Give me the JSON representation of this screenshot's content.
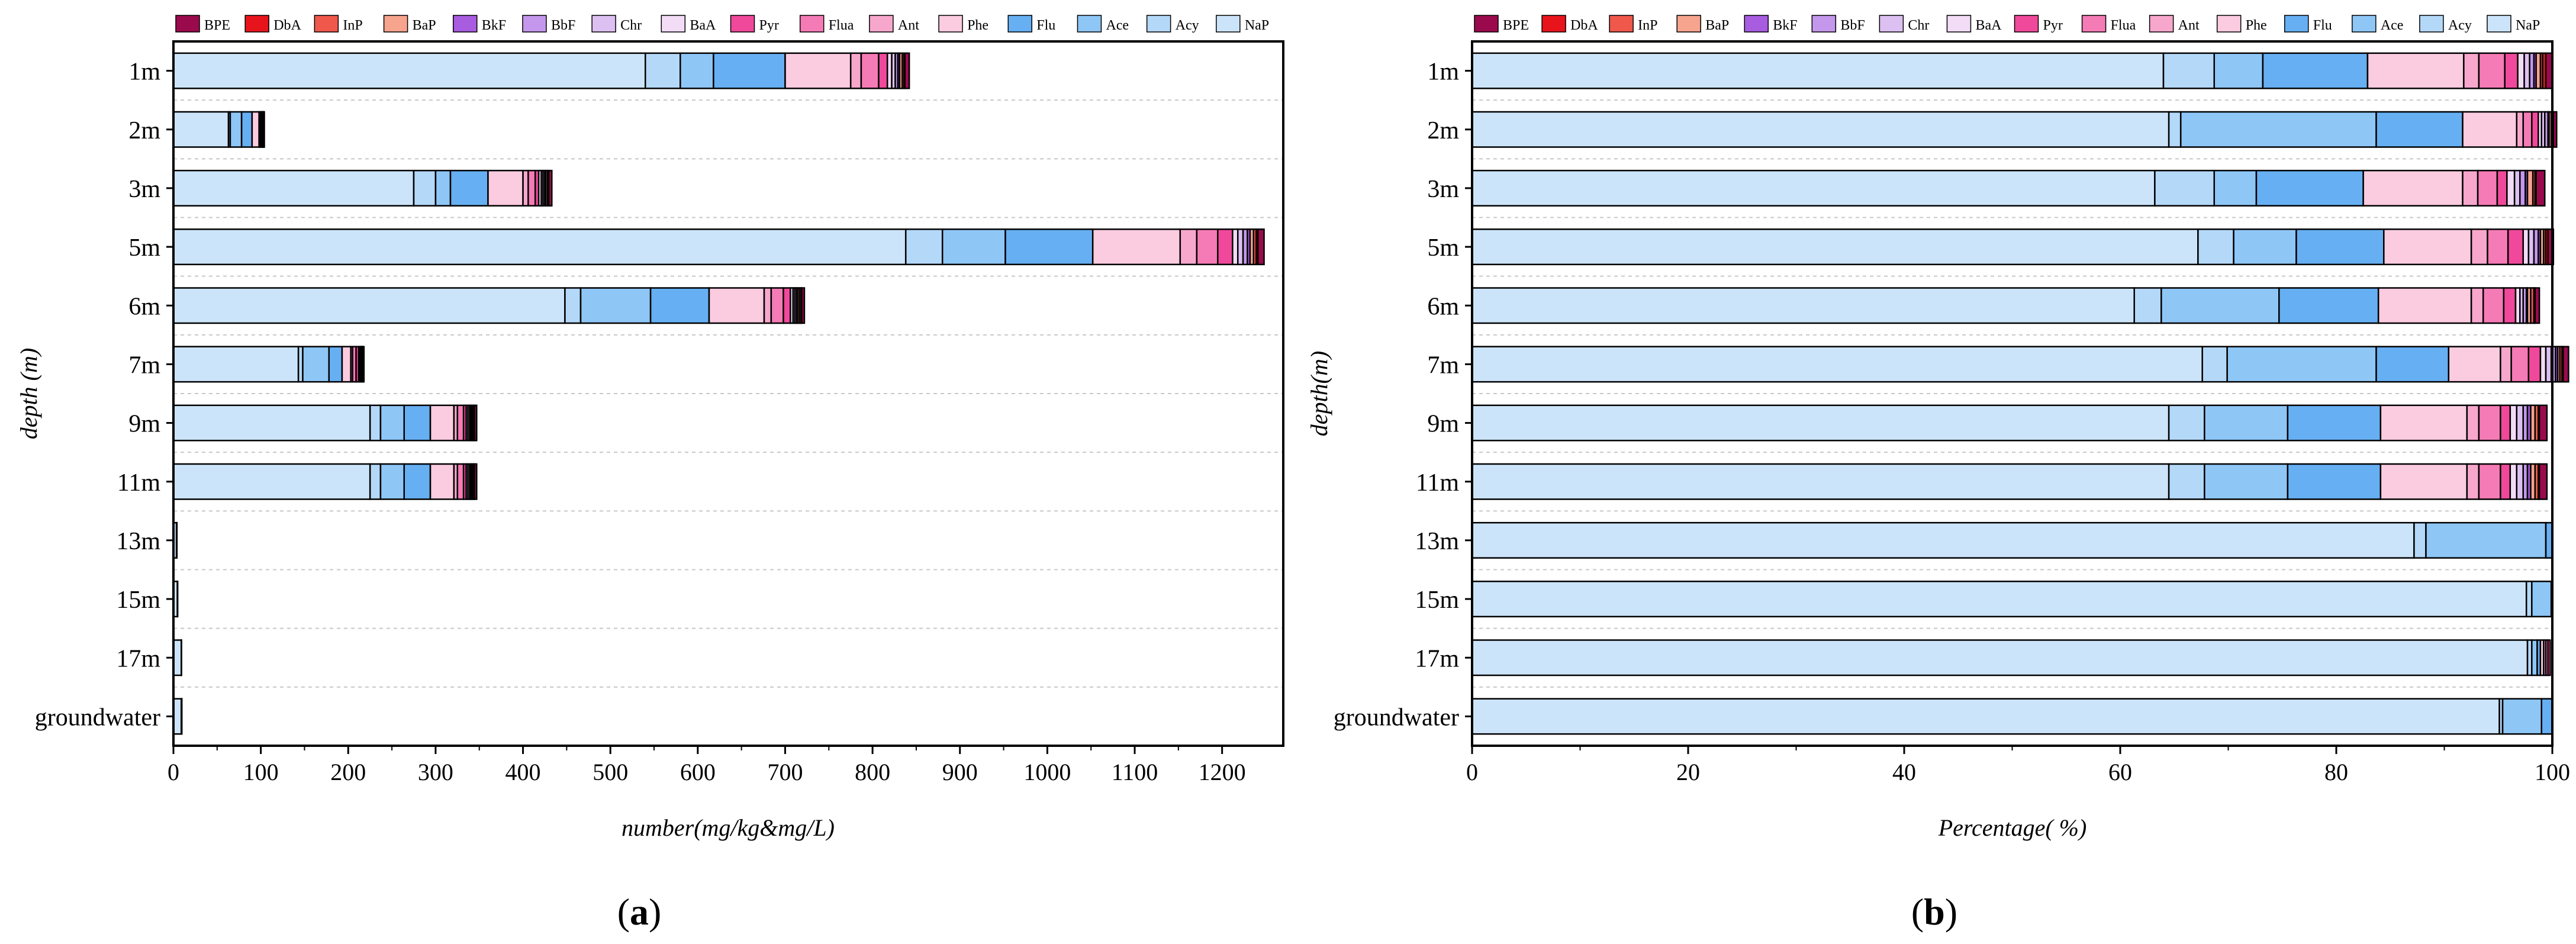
{
  "chart_data": [
    {
      "type": "bar",
      "orientation": "horizontal",
      "stacked": true,
      "panel_label": "a",
      "xlabel": "number(mg/kg&mg/L)",
      "ylabel": "depth  (m)",
      "xlim": [
        0,
        1270
      ],
      "xticks": [
        0,
        100,
        200,
        300,
        400,
        500,
        600,
        700,
        800,
        900,
        1000,
        1100,
        1200
      ],
      "grid": "horizontal-dashed",
      "legend": "top",
      "categories": [
        "1m",
        "2m",
        "3m",
        "5m",
        "6m",
        "7m",
        "9m",
        "11m",
        "13m",
        "15m",
        "17m",
        "groundwater"
      ],
      "series": [
        {
          "name": "NaP",
          "values": [
            540,
            63,
            275,
            838,
            448,
            143,
            225,
            225,
            3.5,
            4.5,
            9,
            9
          ]
        },
        {
          "name": "Acy",
          "values": [
            40,
            2,
            25,
            42,
            18,
            5,
            12,
            12,
            0.1,
            0.1,
            0.1,
            0.1
          ]
        },
        {
          "name": "Ace",
          "values": [
            38,
            13,
            17,
            72,
            80,
            30,
            27,
            27,
            0.4,
            0.1,
            0.1,
            0.4
          ]
        },
        {
          "name": "Flu",
          "values": [
            82,
            12,
            43,
            100,
            67,
            15,
            30,
            30,
            0,
            0.1,
            0,
            0.1
          ]
        },
        {
          "name": "Phe",
          "values": [
            75,
            8,
            40,
            100,
            63,
            10,
            27,
            27,
            0,
            0,
            0,
            0
          ]
        },
        {
          "name": "Ant",
          "values": [
            12,
            1,
            6,
            19,
            8,
            2,
            4,
            4,
            0,
            0,
            0,
            0
          ]
        },
        {
          "name": "Flua",
          "values": [
            20,
            1,
            8,
            24,
            14,
            4,
            7,
            7,
            0,
            0,
            0,
            0
          ]
        },
        {
          "name": "Pyr",
          "values": [
            10,
            1,
            4,
            17,
            8,
            3,
            3,
            3,
            0,
            0,
            0,
            0
          ]
        },
        {
          "name": "BaA",
          "values": [
            5,
            0.5,
            3,
            6,
            3,
            1,
            2,
            2,
            0,
            0,
            0,
            0
          ]
        },
        {
          "name": "Chr",
          "values": [
            4,
            0.5,
            2,
            6,
            2,
            1,
            2,
            2,
            0,
            0,
            0,
            0
          ]
        },
        {
          "name": "BbF",
          "values": [
            3,
            0.5,
            2,
            5,
            2,
            1,
            1.5,
            1.5,
            0,
            0,
            0,
            0
          ]
        },
        {
          "name": "BkF",
          "values": [
            2,
            0.2,
            1,
            3,
            1,
            0.5,
            1,
            1,
            0,
            0,
            0,
            0
          ]
        },
        {
          "name": "BaP",
          "values": [
            3,
            0.3,
            2,
            4,
            2,
            0.5,
            1.5,
            1.5,
            0,
            0,
            0,
            0
          ]
        },
        {
          "name": "InP",
          "values": [
            2,
            0.2,
            1,
            3,
            2,
            0.5,
            1,
            1,
            0,
            0,
            0,
            0
          ]
        },
        {
          "name": "DbA",
          "values": [
            1,
            0.1,
            0.5,
            2,
            1,
            0.3,
            0.5,
            0.5,
            0,
            0,
            0,
            0
          ]
        },
        {
          "name": "BPE",
          "values": [
            5,
            0.7,
            3.5,
            7,
            3,
            1.2,
            2.5,
            2.5,
            0,
            0,
            0,
            0
          ]
        }
      ]
    },
    {
      "type": "bar",
      "orientation": "horizontal",
      "stacked": true,
      "panel_label": "b",
      "xlabel": "Percentage( %)",
      "ylabel": "depth(m)",
      "xlim": [
        0,
        100
      ],
      "xticks": [
        0,
        20,
        40,
        60,
        80,
        100
      ],
      "grid": "horizontal-dashed",
      "legend": "top",
      "categories": [
        "1m",
        "2m",
        "3m",
        "5m",
        "6m",
        "7m",
        "9m",
        "11m",
        "13m",
        "15m",
        "17m",
        "groundwater"
      ],
      "series": [
        {
          "name": "NaP",
          "values": [
            64,
            64.5,
            63.2,
            67.2,
            61.3,
            67.6,
            64.5,
            64.5,
            87.2,
            97.6,
            97.7,
            95.1
          ]
        },
        {
          "name": "Acy",
          "values": [
            4.7,
            1.1,
            5.5,
            3.3,
            2.5,
            2.3,
            3.3,
            3.3,
            1.1,
            0.5,
            0.4,
            0.3
          ]
        },
        {
          "name": "Ace",
          "values": [
            4.5,
            18.1,
            3.9,
            5.8,
            10.9,
            13.8,
            7.7,
            7.7,
            11.1,
            1.8,
            0.5,
            3.6
          ]
        },
        {
          "name": "Flu",
          "values": [
            9.7,
            8,
            9.9,
            8.1,
            9.2,
            6.7,
            8.6,
            8.6,
            0.6,
            0.1,
            0.3,
            1
          ]
        },
        {
          "name": "Phe",
          "values": [
            8.9,
            5,
            9.2,
            8.1,
            8.6,
            4.8,
            8,
            8,
            0,
            0,
            0.3,
            0
          ]
        },
        {
          "name": "Ant",
          "values": [
            1.4,
            0.6,
            1.4,
            1.5,
            1.1,
            1,
            1.1,
            1.1,
            0,
            0,
            0.2,
            0
          ]
        },
        {
          "name": "Flua",
          "values": [
            2.4,
            0.8,
            1.8,
            1.9,
            1.9,
            1.6,
            2,
            2,
            0,
            0,
            0.2,
            0
          ]
        },
        {
          "name": "Pyr",
          "values": [
            1.2,
            0.6,
            0.9,
            1.4,
            1.1,
            1.1,
            0.9,
            0.9,
            0,
            0,
            0.2,
            0
          ]
        },
        {
          "name": "BaA",
          "values": [
            0.6,
            0.3,
            0.7,
            0.5,
            0.4,
            0.5,
            0.6,
            0.6,
            0,
            0,
            0,
            0
          ]
        },
        {
          "name": "Chr",
          "values": [
            0.5,
            0.3,
            0.5,
            0.5,
            0.3,
            0.5,
            0.6,
            0.6,
            0,
            0,
            0,
            0
          ]
        },
        {
          "name": "BbF",
          "values": [
            0.4,
            0.3,
            0.5,
            0.4,
            0.3,
            0.4,
            0.4,
            0.4,
            0,
            0,
            0,
            0
          ]
        },
        {
          "name": "BkF",
          "values": [
            0.2,
            0.1,
            0.2,
            0.2,
            0.1,
            0.2,
            0.3,
            0.3,
            0,
            0,
            0,
            0
          ]
        },
        {
          "name": "BaP",
          "values": [
            0.4,
            0.2,
            0.5,
            0.3,
            0.3,
            0.2,
            0.4,
            0.4,
            0,
            0,
            0,
            0
          ]
        },
        {
          "name": "InP",
          "values": [
            0.2,
            0.1,
            0.2,
            0.2,
            0.3,
            0.2,
            0.3,
            0.3,
            0,
            0,
            0,
            0
          ]
        },
        {
          "name": "DbA",
          "values": [
            0.3,
            0.1,
            0.1,
            0.2,
            0.1,
            0.1,
            0.1,
            0.1,
            0,
            0,
            0,
            0
          ]
        },
        {
          "name": "BPE",
          "values": [
            0.6,
            0.3,
            0.8,
            0.5,
            0.4,
            0.5,
            0.7,
            0.7,
            0,
            0,
            0,
            0
          ]
        }
      ]
    }
  ],
  "legend": {
    "order": [
      "BPE",
      "DbA",
      "InP",
      "BaP",
      "BkF",
      "BbF",
      "Chr",
      "BaA",
      "Pyr",
      "Flua",
      "Ant",
      "Phe",
      "Flu",
      "Ace",
      "Acy",
      "NaP"
    ],
    "colors": {
      "BPE": "#9b0a4d",
      "DbA": "#e8141c",
      "InP": "#f0584c",
      "BaP": "#f6a48e",
      "BkF": "#a85ce0",
      "BbF": "#c597ec",
      "Chr": "#ddc0f2",
      "BaA": "#f2dcf6",
      "Pyr": "#f0499b",
      "Flua": "#f47bb5",
      "Ant": "#f7a7cc",
      "Phe": "#fbcbe0",
      "Flu": "#66aff2",
      "Ace": "#8ec6f6",
      "Acy": "#b4d8f8",
      "NaP": "#cce4fa"
    }
  }
}
